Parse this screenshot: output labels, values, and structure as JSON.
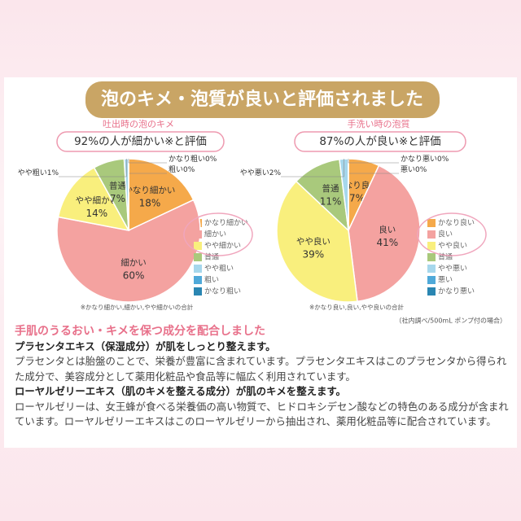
{
  "banner": "泡のキメ・泡質が良いと評価されました",
  "chart_data": [
    {
      "type": "pie",
      "subtitle": "吐出時の泡のキメ",
      "headline": "92%の人が細かい※と評価",
      "categories": [
        "かなり細かい",
        "細かい",
        "やや細かい",
        "普通",
        "やや粗い",
        "粗い",
        "かなり粗い"
      ],
      "values": [
        18,
        60,
        14,
        7,
        1,
        0,
        0
      ],
      "value_labels": [
        "18%",
        "60%",
        "14%",
        "7%",
        "1%",
        "0%",
        "0%"
      ],
      "colors": [
        "#f5a94a",
        "#f4a2a0",
        "#f9ef7d",
        "#a9c97c",
        "#a6d7ec",
        "#4fa9d9",
        "#2a86b2"
      ],
      "footnote": "※かなり細かい,細かい,やや細かいの合計"
    },
    {
      "type": "pie",
      "subtitle": "手洗い時の泡質",
      "headline": "87%の人が良い※と評価",
      "categories": [
        "かなり良い",
        "良い",
        "やや良い",
        "普通",
        "やや悪い",
        "悪い",
        "かなり悪い"
      ],
      "values": [
        7,
        41,
        39,
        11,
        2,
        0,
        0
      ],
      "value_labels": [
        "7%",
        "41%",
        "39%",
        "11%",
        "2%",
        "0%",
        "0%"
      ],
      "colors": [
        "#f5a94a",
        "#f4a2a0",
        "#f9ef7d",
        "#a9c97c",
        "#a6d7ec",
        "#4fa9d9",
        "#2a86b2"
      ],
      "footnote": "※かなり良い,良い,やや良いの合計"
    }
  ],
  "source_note": "（社内調べ/500mL ポンプ付の場合）",
  "section": {
    "heading": "手肌のうるおい・キメを保つ成分を配合しました",
    "blocks": [
      {
        "title": "プラセンタエキス（保湿成分）が肌をしっとり整えます。",
        "text": "プラセンタとは胎盤のことで、栄養が豊富に含まれています。プラセンタエキスはこのプラセンタから得られた成分で、美容成分として薬用化粧品や食品等に幅広く利用されています。"
      },
      {
        "title": "ローヤルゼリーエキス（肌のキメを整える成分）が肌のキメを整えます。",
        "text": "ローヤルゼリーは、女王蜂が食べる栄養価の高い物質で、ヒドロキシデセン酸などの特色のある成分が含まれています。ローヤルゼリーエキスはこのローヤルゼリーから抽出され、薬用化粧品等に配合されています。"
      }
    ]
  }
}
